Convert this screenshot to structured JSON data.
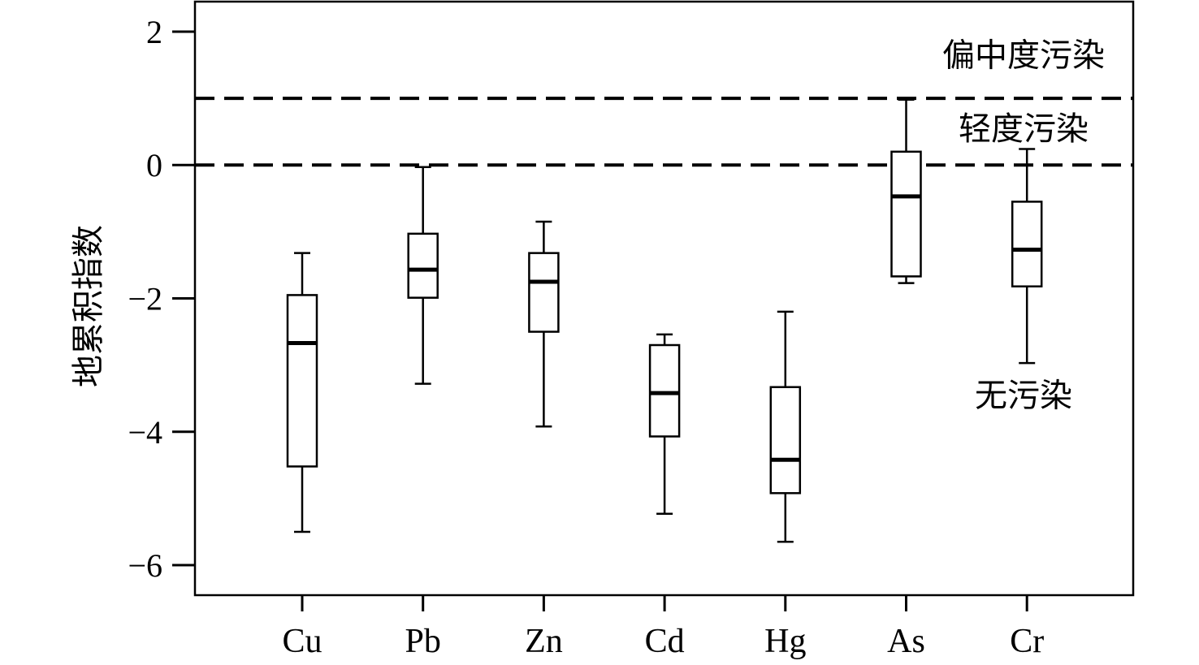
{
  "chart_data": {
    "type": "box",
    "ylabel": "地累积指数",
    "ylim": [
      -6.45,
      2.45
    ],
    "yticks": [
      2,
      0,
      -2,
      -4,
      -6
    ],
    "ytick_labels": [
      "2",
      "0",
      "−2",
      "−4",
      "−6"
    ],
    "categories": [
      "Cu",
      "Pb",
      "Zn",
      "Cd",
      "Hg",
      "As",
      "Cr"
    ],
    "boxes": [
      {
        "name": "Cu",
        "whisker_low": -5.5,
        "q1": -4.52,
        "median": -2.67,
        "q3": -1.95,
        "whisker_high": -1.32
      },
      {
        "name": "Pb",
        "whisker_low": -3.28,
        "q1": -1.99,
        "median": -1.57,
        "q3": -1.03,
        "whisker_high": -0.03
      },
      {
        "name": "Zn",
        "whisker_low": -3.92,
        "q1": -2.5,
        "median": -1.75,
        "q3": -1.32,
        "whisker_high": -0.85
      },
      {
        "name": "Cd",
        "whisker_low": -5.23,
        "q1": -4.07,
        "median": -3.42,
        "q3": -2.7,
        "whisker_high": -2.54
      },
      {
        "name": "Hg",
        "whisker_low": -5.65,
        "q1": -4.92,
        "median": -4.42,
        "q3": -3.33,
        "whisker_high": -2.2
      },
      {
        "name": "As",
        "whisker_low": -1.77,
        "q1": -1.67,
        "median": -0.47,
        "q3": 0.2,
        "whisker_high": 0.98
      },
      {
        "name": "Cr",
        "whisker_low": -2.97,
        "q1": -1.82,
        "median": -1.27,
        "q3": -0.55,
        "whisker_high": 0.24
      }
    ],
    "reference_lines": [
      {
        "y": 1,
        "style": "dashed"
      },
      {
        "y": 0,
        "style": "dashed"
      }
    ],
    "zone_labels": [
      {
        "text": "偏中度污染",
        "y": 1.65
      },
      {
        "text": "轻度污染",
        "y": 0.55
      },
      {
        "text": "无污染",
        "y": -3.45
      }
    ],
    "grid": false,
    "legend": "none",
    "colors": {
      "line": "#000000",
      "box_fill": "#ffffff"
    }
  }
}
